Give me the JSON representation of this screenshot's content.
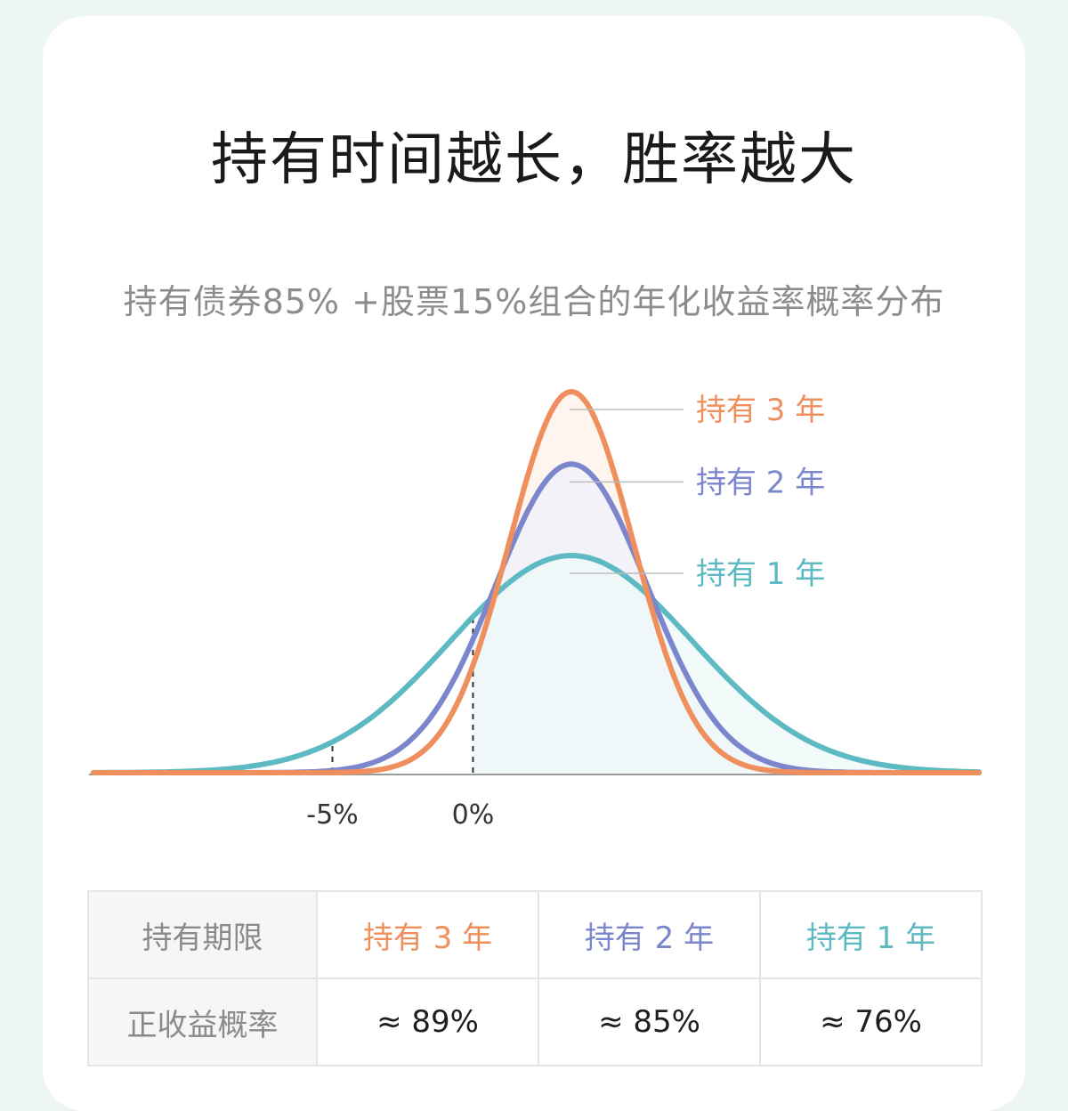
{
  "title": "持有时间越长，胜率越大",
  "subtitle": "持有债券85% +股票15%组合的年化收益率概率分布",
  "colors": {
    "year3": "#ef8f5d",
    "year2": "#7b86cc",
    "year1": "#5db9c2",
    "axis": "#9a9a9a",
    "tick_text": "#333333"
  },
  "chart_data": {
    "type": "line",
    "x_tick_labels": [
      "-5%",
      "0%"
    ],
    "x_ticks": [
      -5,
      0
    ],
    "series": [
      {
        "name": "持有 3 年",
        "color": "#ef8f5d",
        "shape": "normal",
        "mean": 3.5,
        "sd": 2.2,
        "peak": 1.0
      },
      {
        "name": "持有 2 年",
        "color": "#7b86cc",
        "shape": "normal",
        "mean": 3.5,
        "sd": 2.7,
        "peak": 0.81
      },
      {
        "name": "持有 1 年",
        "color": "#5db9c2",
        "shape": "normal",
        "mean": 3.5,
        "sd": 4.3,
        "peak": 0.57
      }
    ],
    "legend_placement": "right-of-peaks",
    "positive_region_start": 0
  },
  "table": {
    "row1": {
      "header": "持有期限",
      "cells": [
        "持有 3 年",
        "持有 2 年",
        "持有 1 年"
      ]
    },
    "row2": {
      "header": "正收益概率",
      "cells": [
        "≈ 89%",
        "≈ 85%",
        "≈ 76%"
      ]
    }
  }
}
